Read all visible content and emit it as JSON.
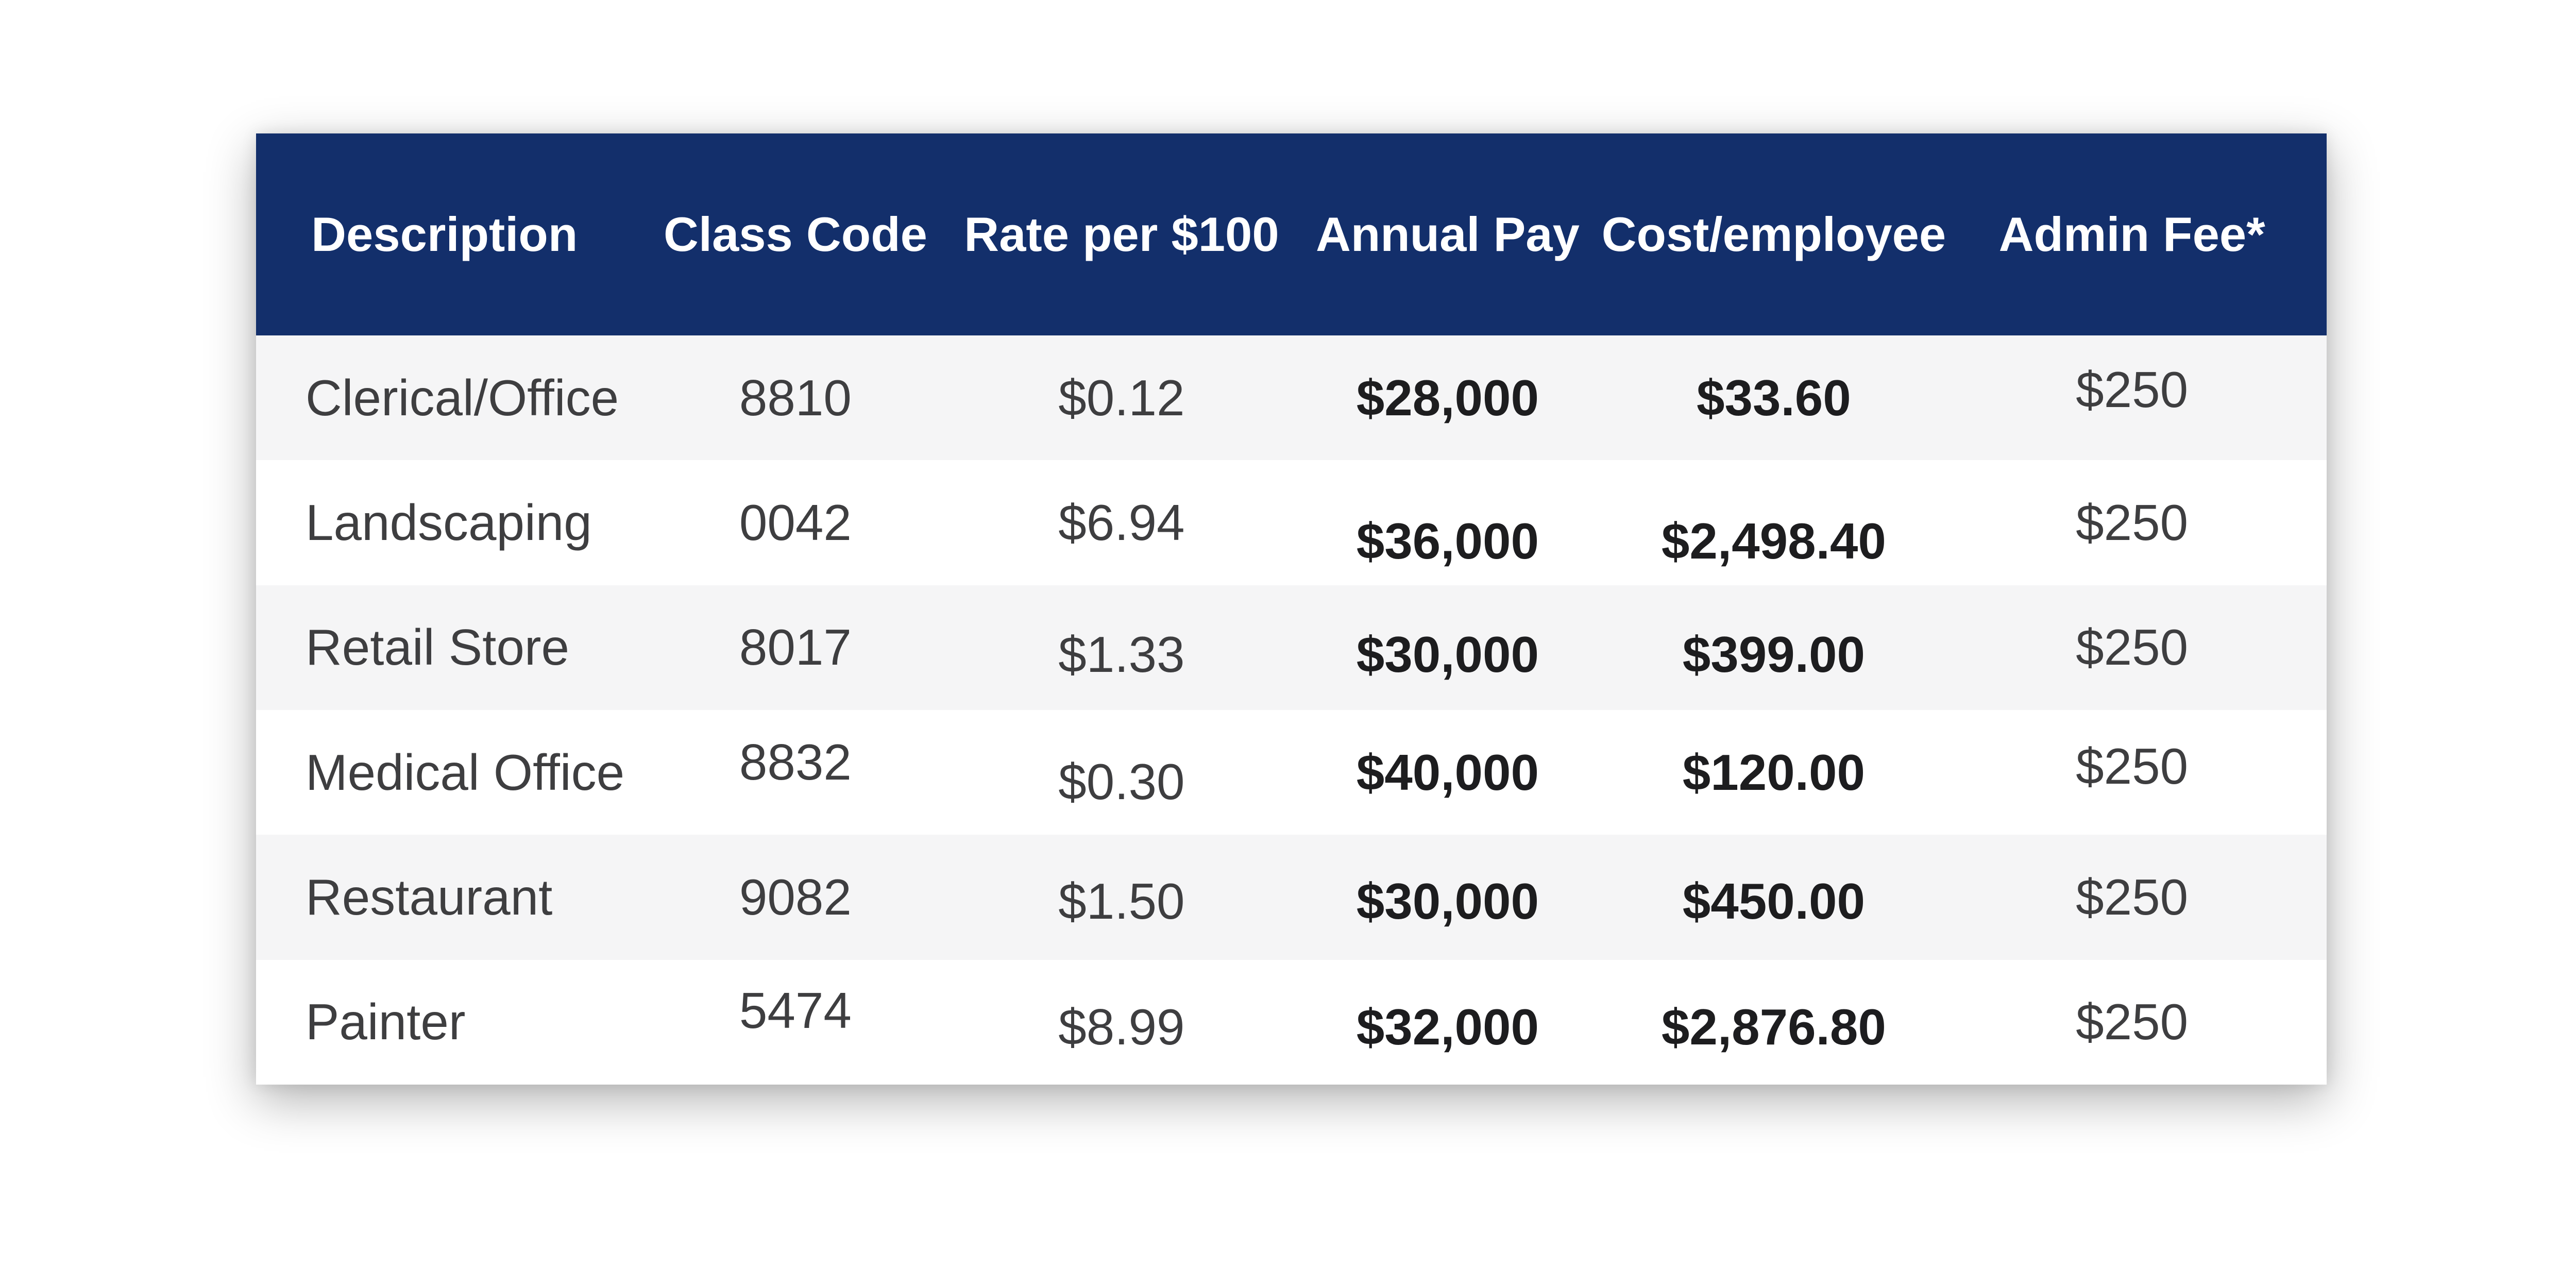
{
  "chart_data": {
    "type": "table",
    "columns": [
      "Description",
      "Class Code",
      "Rate per $100",
      "Annual Pay",
      "Cost/employee",
      "Admin Fee*"
    ],
    "rows": [
      [
        "Clerical/Office",
        "8810",
        "$0.12",
        "$28,000",
        "$33.60",
        "$250"
      ],
      [
        "Landscaping",
        "0042",
        "$6.94",
        "$36,000",
        "$2,498.40",
        "$250"
      ],
      [
        "Retail Store",
        "8017",
        "$1.33",
        "$30,000",
        "$399.00",
        "$250"
      ],
      [
        "Medical Office",
        "8832",
        "$0.30",
        "$40,000",
        "$120.00",
        "$250"
      ],
      [
        "Restaurant",
        "9082",
        "$1.50",
        "$30,000",
        "$450.00",
        "$250"
      ],
      [
        "Painter",
        "5474",
        "$8.99",
        "$32,000",
        "$2,876.80",
        "$250"
      ]
    ],
    "emphasized_columns": [
      "Annual Pay",
      "Cost/employee"
    ],
    "legend_position": "none",
    "grid": "zebra-stripes"
  },
  "colors": {
    "header_bg": "#132f6b",
    "header_text": "#ffffff",
    "row_bg": "#ffffff",
    "row_alt_bg": "#f5f5f6",
    "body_text": "#3e3e40",
    "emphasis_text": "#1d1d1f",
    "page_bg": "#ffffff"
  }
}
